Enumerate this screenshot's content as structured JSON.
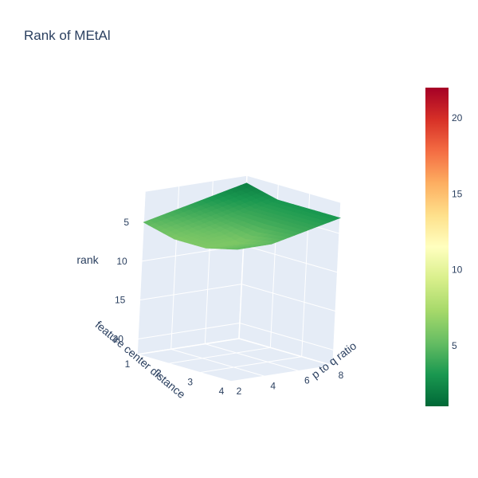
{
  "chart_data": {
    "type": "surface",
    "title": "Rank of MEtAl",
    "x_axis": {
      "label": "feature center distance",
      "ticks": [
        1,
        2,
        3,
        4
      ],
      "range": [
        1,
        4
      ]
    },
    "y_axis": {
      "label": "p to q ratio",
      "ticks": [
        2,
        4,
        6,
        8
      ],
      "range": [
        2,
        8
      ]
    },
    "z_axis": {
      "label": "rank",
      "ticks": [
        5,
        10,
        15,
        20
      ],
      "range": [
        1,
        22
      ],
      "reversed": true
    },
    "x": [
      1,
      2,
      3,
      4
    ],
    "y": [
      2,
      4,
      6,
      8
    ],
    "z": [
      [
        5,
        4,
        3,
        2
      ],
      [
        6,
        5,
        4,
        3
      ],
      [
        6,
        6,
        4,
        3
      ],
      [
        5,
        5,
        4,
        3
      ]
    ],
    "colorscale": [
      "#006837",
      "#1a9850",
      "#66bd63",
      "#a6d96a",
      "#d9ef8b",
      "#ffffbf",
      "#fee08b",
      "#fdae61",
      "#f46d43",
      "#d73027",
      "#a50026"
    ],
    "colorbar": {
      "ticks": [
        5,
        10,
        15,
        20
      ],
      "range": [
        1,
        22
      ]
    },
    "background_color": "#e5ecf6",
    "grid": true
  }
}
